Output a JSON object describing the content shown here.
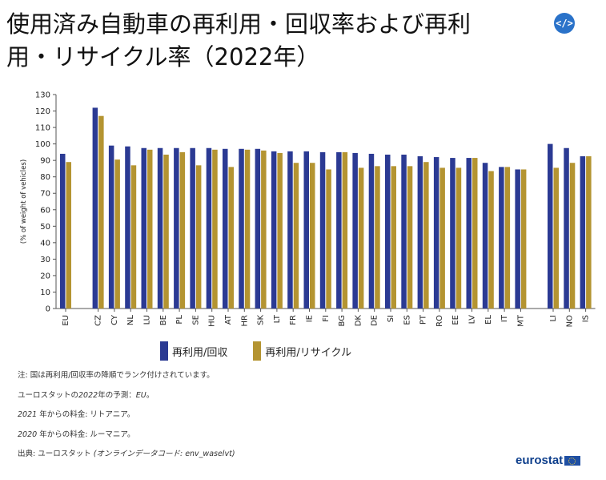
{
  "title_line1": "使用済み自動車の再利用・回収率および再利",
  "title_line2": "用・リサイクル率（2022年）",
  "embed_icon": "code-icon",
  "embed_label": "</>",
  "colors": {
    "series1": "#2b3a93",
    "series2": "#b49431",
    "axis": "#555555"
  },
  "chart_data": {
    "type": "bar",
    "ylabel": "(% of weight of vehicles)",
    "ylim": [
      0,
      130
    ],
    "yticks": [
      0,
      10,
      20,
      30,
      40,
      50,
      60,
      70,
      80,
      90,
      100,
      110,
      120,
      130
    ],
    "grid": false,
    "legend": "bottom",
    "categories": [
      "EU",
      "",
      "CZ",
      "CY",
      "NL",
      "LU",
      "BE",
      "PL",
      "SE",
      "HU",
      "AT",
      "HR",
      "SK",
      "LT",
      "FR",
      "IE",
      "FI",
      "BG",
      "DK",
      "DE",
      "SI",
      "ES",
      "PT",
      "RO",
      "EE",
      "LV",
      "EL",
      "IT",
      "MT",
      "",
      "LI",
      "NO",
      "IS"
    ],
    "series": [
      {
        "name": "再利用/回収",
        "values": [
          94,
          null,
          122,
          99,
          98.5,
          97.5,
          97.5,
          97.5,
          97.5,
          97.5,
          97,
          97,
          97,
          95.5,
          95.5,
          95.5,
          95,
          95,
          94.5,
          94,
          93.5,
          93.5,
          92.5,
          92,
          91.5,
          91.5,
          88.5,
          86,
          84.5,
          null,
          100,
          97.5,
          92.5
        ]
      },
      {
        "name": "再利用/リサイクル",
        "values": [
          89,
          null,
          117,
          90.5,
          87,
          96.5,
          93.5,
          95,
          87,
          96.5,
          86,
          96.5,
          96,
          94.5,
          88.5,
          88.5,
          84.5,
          95,
          85.5,
          86.5,
          86.5,
          86.5,
          89,
          85.5,
          85.5,
          91.5,
          83.5,
          86,
          84.5,
          null,
          85.5,
          88.5,
          92.5
        ]
      }
    ]
  },
  "notes": {
    "n1": "注: 国は再利用/回収率の降順でランク付けされています。",
    "n2a": "ユーロスタットの",
    "n2b": "2022",
    "n2c": "年の予測：",
    "n2d": "EU",
    "n2e": "。",
    "n3a": "2021",
    "n3b": " 年からの料金: リトアニア。",
    "n4a": "2020",
    "n4b": " 年からの料金: ルーマニア。",
    "n5a": "出典: ユーロスタット ",
    "n5b": "(オンラインデータコード: ",
    "n5c": "env_waselvt",
    "n5d": ")"
  },
  "logo_text": "eurostat",
  "logo_icon": "eu-flag-icon"
}
